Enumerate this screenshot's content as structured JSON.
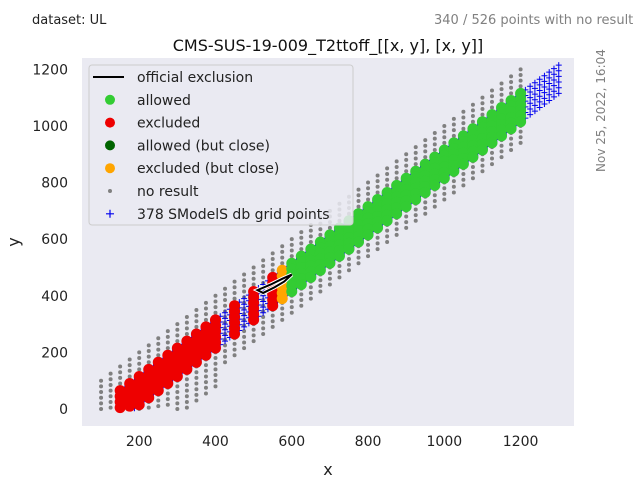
{
  "header": {
    "dataset_label": "dataset: UL",
    "points_note": "340 / 526 points with no result",
    "timestamp": "Nov 25, 2022, 16:04"
  },
  "colors": {
    "plot_bg": "#eaeaf2",
    "official_exclusion": "#000000",
    "allowed": "#33cc33",
    "excluded": "#ee0000",
    "allowed_close": "#006400",
    "excluded_close": "#ffa500",
    "no_result": "#808080",
    "grid_points": "#0000ee"
  },
  "chart_data": {
    "type": "scatter",
    "title": "CMS-SUS-19-009_T2ttoff_[[x, y], [x, y]]",
    "xlabel": "x",
    "ylabel": "y",
    "xlim": [
      50,
      1340
    ],
    "ylim": [
      -60,
      1240
    ],
    "xticks": [
      200,
      400,
      600,
      800,
      1000,
      1200
    ],
    "yticks": [
      0,
      200,
      400,
      600,
      800,
      1000,
      1200
    ],
    "grid": false,
    "legend_position": "top-left",
    "legend": [
      {
        "key": "official_exclusion",
        "label": "official exclusion",
        "marker": "line"
      },
      {
        "key": "allowed",
        "label": "allowed",
        "marker": "dot"
      },
      {
        "key": "excluded",
        "label": "excluded",
        "marker": "dot"
      },
      {
        "key": "allowed_close",
        "label": "allowed (but close)",
        "marker": "dot"
      },
      {
        "key": "excluded_close",
        "label": "excluded (but close)",
        "marker": "dot"
      },
      {
        "key": "no_result",
        "label": "no result",
        "marker": "small-dot"
      },
      {
        "key": "grid_points",
        "label": "378 SModelS db grid points",
        "marker": "plus"
      }
    ],
    "official_exclusion_line": {
      "x": [
        510,
        545,
        575,
        600,
        580,
        555,
        525
      ],
      "y": [
        420,
        440,
        460,
        475,
        450,
        430,
        410
      ]
    },
    "band_model": {
      "dm_min": 85,
      "dm_max": 200,
      "dm_step": 20,
      "x_step": 25
    },
    "status_ranges": {
      "excluded": {
        "x_min": 150,
        "x_max": 420
      },
      "excluded_sparse": {
        "x_min": 420,
        "x_max": 560
      },
      "excluded_close": {
        "x_min": 560,
        "x_max": 590
      },
      "allowed": {
        "x_min": 600,
        "x_max": 1210
      },
      "grid_x_max": 1300,
      "no_result_x_min": 100,
      "no_result_x_max": 1210
    }
  }
}
